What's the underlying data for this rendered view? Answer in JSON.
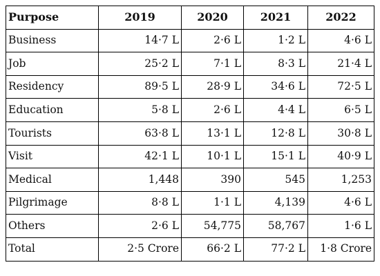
{
  "table": {
    "headers": [
      "Purpose",
      "2019",
      "2020",
      "2021",
      "2022"
    ],
    "rows": [
      [
        "Business",
        "14·7 L",
        "2·6 L",
        "1·2 L",
        "4·6 L"
      ],
      [
        "Job",
        "25·2 L",
        "7·1 L",
        "8·3 L",
        "21·4 L"
      ],
      [
        "Residency",
        "89·5 L",
        "28·9 L",
        "34·6 L",
        "72·5 L"
      ],
      [
        "Education",
        "5·8 L",
        "2·6 L",
        "4·4 L",
        "6·5 L"
      ],
      [
        "Tourists",
        "63·8 L",
        "13·1 L",
        "12·8 L",
        "30·8 L"
      ],
      [
        "Visit",
        "42·1 L",
        "10·1 L",
        "15·1 L",
        "40·9 L"
      ],
      [
        "Medical",
        "1,448",
        "390",
        "545",
        "1,253"
      ],
      [
        "Pilgrimage",
        "8·8 L",
        "1·1 L",
        "4,139",
        "4·6 L"
      ],
      [
        "Others",
        "2·6 L",
        "54,775",
        "58,767",
        "1·6 L"
      ],
      [
        "Total",
        "2·5 Crore",
        "66·2 L",
        "77·2 L",
        "1·8 Crore"
      ]
    ]
  }
}
